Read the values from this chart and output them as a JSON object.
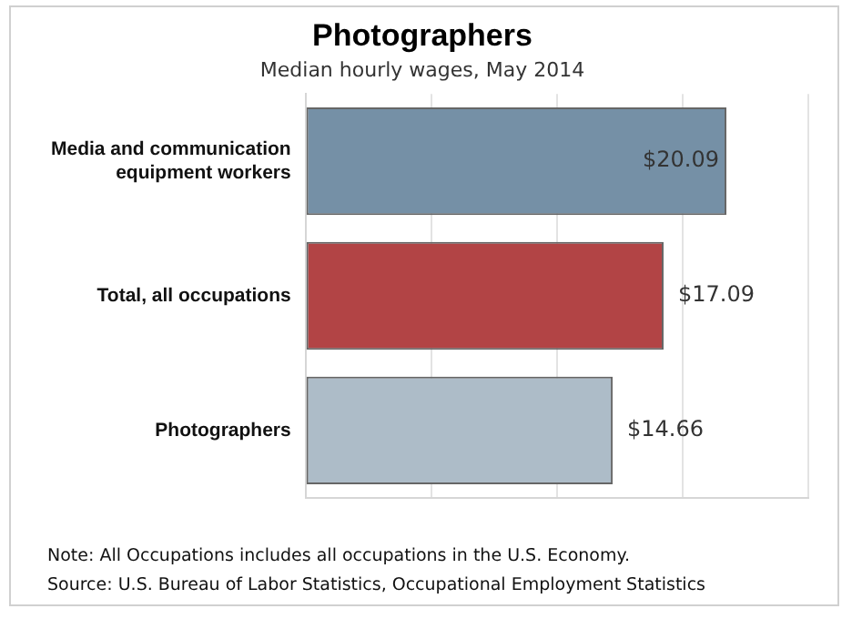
{
  "chart_data": {
    "type": "bar",
    "orientation": "horizontal",
    "title": "Photographers",
    "subtitle": "Median hourly wages, May 2014",
    "categories": [
      "Media and communication equipment workers",
      "Total, all occupations",
      "Photographers"
    ],
    "values": [
      20.09,
      17.09,
      14.66
    ],
    "colors": [
      "#7590a6",
      "#b24445",
      "#adbcc8"
    ],
    "value_labels": [
      "$20.09",
      "$17.09",
      "$14.66"
    ],
    "xlim": [
      0,
      24
    ],
    "xticks": [
      {
        "value": 0,
        "label": null
      },
      {
        "value": 6,
        "label": null
      },
      {
        "value": 12,
        "label": null
      },
      {
        "value": 18,
        "label": null
      },
      {
        "value": 24,
        "label": null
      }
    ],
    "grid": "x",
    "legend": false,
    "annotations": [
      "Note: All Occupations includes all occupations in the U.S. Economy.",
      "Source: U.S. Bureau of Labor Statistics, Occupational Employment Statistics"
    ]
  }
}
